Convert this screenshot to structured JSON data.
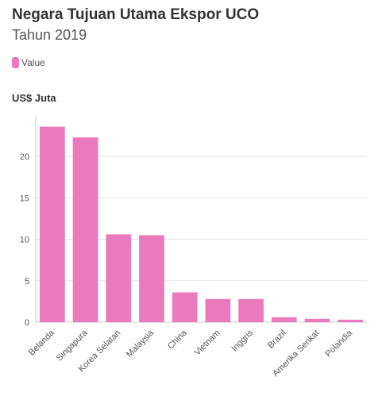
{
  "chart_data": {
    "type": "bar",
    "title": "Negara Tujuan Utama Ekspor UCO",
    "subtitle": "Tahun 2019",
    "ylabel": "US$ Juta",
    "xlabel": "",
    "categories": [
      "Belanda",
      "Singapura",
      "Korea Selatan",
      "Malaysia",
      "China",
      "Vietnam",
      "Inggris",
      "Brazil",
      "Amerika Serikat",
      "Polandia"
    ],
    "series": [
      {
        "name": "Value",
        "values": [
          23.6,
          22.3,
          10.6,
          10.5,
          3.6,
          2.8,
          2.8,
          0.6,
          0.4,
          0.3
        ]
      }
    ],
    "ylim": [
      0,
      25
    ],
    "yticks": [
      0,
      5,
      10,
      15,
      20
    ],
    "grid": true,
    "legend_position": "top-left",
    "colors": {
      "bar": "#ea7abb",
      "grid": "#e6e6e6",
      "axis": "#cccccc"
    }
  }
}
